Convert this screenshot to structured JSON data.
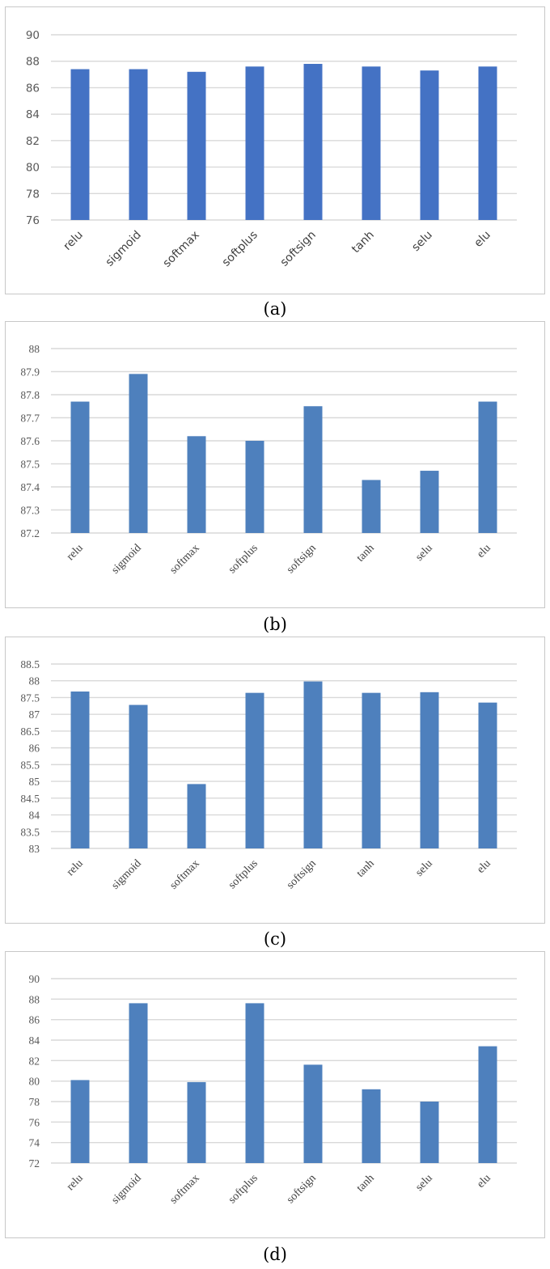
{
  "charts": [
    {
      "id": "a",
      "caption": "(a)",
      "color": "#4472c4",
      "font": "sans"
    },
    {
      "id": "b",
      "caption": "(b)",
      "color": "#4e80bd",
      "font": "serif"
    },
    {
      "id": "c",
      "caption": "(c)",
      "color": "#4e80bd",
      "font": "serif"
    },
    {
      "id": "d",
      "caption": "(d)",
      "color": "#4e80bd",
      "font": "serif"
    }
  ],
  "chart_data": [
    {
      "type": "bar",
      "title": "",
      "xlabel": "",
      "ylabel": "",
      "categories": [
        "relu",
        "sigmoid",
        "softmax",
        "softplus",
        "softsign",
        "tanh",
        "selu",
        "elu"
      ],
      "values": [
        87.4,
        87.4,
        87.2,
        87.6,
        87.8,
        87.6,
        87.3,
        87.6
      ],
      "ylim": [
        76,
        90
      ],
      "yticks": [
        "76",
        "78",
        "80",
        "82",
        "84",
        "86",
        "88",
        "90"
      ],
      "grid": true
    },
    {
      "type": "bar",
      "title": "",
      "xlabel": "",
      "ylabel": "",
      "categories": [
        "relu",
        "sigmoid",
        "softmax",
        "softplus",
        "softsign",
        "tanh",
        "selu",
        "elu"
      ],
      "values": [
        87.77,
        87.89,
        87.62,
        87.6,
        87.75,
        87.43,
        87.47,
        87.77
      ],
      "ylim": [
        87.2,
        88
      ],
      "yticks": [
        "87.2",
        "87.3",
        "87.4",
        "87.5",
        "87.6",
        "87.7",
        "87.8",
        "87.9",
        "88"
      ],
      "grid": true
    },
    {
      "type": "bar",
      "title": "",
      "xlabel": "",
      "ylabel": "",
      "categories": [
        "relu",
        "sigmoid",
        "softmax",
        "softplus",
        "softsign",
        "tanh",
        "selu",
        "elu"
      ],
      "values": [
        87.68,
        87.28,
        84.92,
        87.64,
        87.98,
        87.64,
        87.66,
        87.35
      ],
      "ylim": [
        83,
        88.5
      ],
      "yticks": [
        "83",
        "83.5",
        "84",
        "84.5",
        "85",
        "85.5",
        "86",
        "86.5",
        "87",
        "87.5",
        "88",
        "88.5"
      ],
      "grid": true
    },
    {
      "type": "bar",
      "title": "",
      "xlabel": "",
      "ylabel": "",
      "categories": [
        "relu",
        "sigmoid",
        "softmax",
        "softplus",
        "softsign",
        "tanh",
        "selu",
        "elu"
      ],
      "values": [
        80.1,
        87.6,
        79.9,
        87.6,
        81.6,
        79.2,
        78.0,
        83.4
      ],
      "ylim": [
        72,
        90
      ],
      "yticks": [
        "72",
        "74",
        "76",
        "78",
        "80",
        "82",
        "84",
        "86",
        "88",
        "90"
      ],
      "grid": true
    }
  ]
}
